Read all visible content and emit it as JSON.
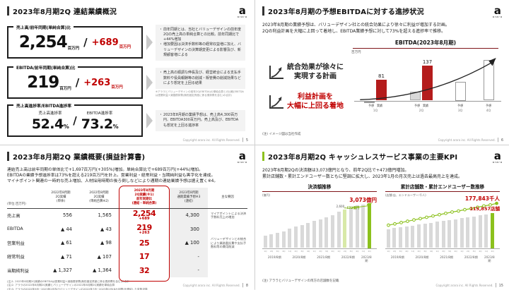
{
  "logo": {
    "mark": "a",
    "name": "arara"
  },
  "footer": {
    "copyright": "Copyright arara inc. All Rights Reserved."
  },
  "slides": {
    "tl": {
      "page": "5",
      "title": "2023年8月期2Q 連結業績概況",
      "kpi_boxes": [
        {
          "label": "売上高/前年同期(単純合算)比",
          "value": "2,254",
          "unit": "百万円",
          "slash": "/",
          "delta": "+689",
          "delta_unit": "百万円"
        },
        {
          "label": "EBITDA/前年同期(単純合算)比",
          "value": "219",
          "unit": "百万円",
          "slash": "/",
          "delta": "+263",
          "delta_unit": "百万円"
        },
        {
          "label": "売上高進捗率/EBITDA進捗率",
          "left_label": "売上高進捗率",
          "left_value": "52.4",
          "left_unit": "%",
          "slash": "/",
          "right_label": "EBITDA進捗率",
          "right_value": "73.2",
          "right_unit": "%"
        }
      ],
      "notes": [
        {
          "bullets": [
            "前年同期とは、当社とバリューデザインの前年度2Qの売上高の単純合算との比較。前年同期比で+44%増加",
            "増加要因は決済手数料等の経常収益増に加え、バリューデザインの決算期変更による影響及び、新規顧客増による"
          ]
        },
        {
          "bullets": [
            "売上高の順調な伸長及び、経営統合による支払手数料や役員報酬等の削減・販管費の削減効果などにより想定を上回る結果"
          ],
          "footnote": "※アララとバリューデザインの前年2Q(EBITDA)の単純合算との比較(EBITDAは営業利益+減価償却費(無形固定資産に係る償却費を含む)の合計)"
        },
        {
          "bullets": [
            "2023年8月期の業績予想は、売上高4,300百万円、EBITDA300百万円。売上高及び、EBITDAも想定を上回る進捗率"
          ]
        }
      ]
    },
    "tr": {
      "page": "6",
      "title": "2023年8月期の予想EBITDAに対する進捗状況",
      "lead": "2023年8月期の業績予想は、バリューデザイン社との統合効果により徐々に利益が増加する計画。\n2Qの利益計画を大幅に上回って着地し、EBITDA業績予想に対して73%を超える進捗率で推移。",
      "point_black": "統合効果が徐々に\n実現する計画",
      "point_red": "利益計画を\n大幅に上回る着地",
      "note": "(注) イメージ図は当社作成"
    },
    "bl": {
      "page": "8",
      "title": "2023年8月期2Q 業績概要(損益計算書)",
      "lead": "連結売上高は前年同期の単体比で+1,697百万円(+305%)増加。単純合算比で+689百万円(+44%)増加。\nEBITDAの業績予想進捗率は73%を超える219百万円を計上。営業利益・経常利益・当期純利益も黒字化を達成。\nマイナポイント関連の一時的な売上増加、人材採用時期の後ろ倒しなどにより通期の連結業績予想は据え置く※4。",
      "table": {
        "unit_label": "(単位:百万円)",
        "columns": [
          "2022年8月期\n2Q実績\n(単体)",
          "2022年8月期\n2Q実績\n(単純合算※2)",
          "2023年8月期\n2Q実績(※1)\n前年同期比\n(連結・単純合算)",
          "2023年8月期\n通期業績予想※3\n(連結)",
          "主な要因"
        ],
        "rows": [
          {
            "label": "売上高",
            "prior_standalone": "556",
            "prior_combined": "1,565",
            "current": "2,254",
            "current_delta": "+689",
            "forecast": "4,300",
            "factor": "マイナポイントによる決済手数料売上の増加"
          },
          {
            "label": "EBITDA",
            "prior_standalone": "▲ 44",
            "prior_combined": "▲ 43",
            "current": "219",
            "current_delta": "+263",
            "forecast": "300",
            "factor": ""
          },
          {
            "label": "営業利益",
            "prior_standalone": "▲ 61",
            "prior_combined": "▲ 98",
            "current": "25",
            "current_delta": "",
            "forecast": "▲ 100",
            "factor": "バリューデザインとの統合により業務委託費や支払手数料等の費用削減"
          },
          {
            "label": "経常利益",
            "prior_standalone": "▲ 71",
            "prior_combined": "▲ 107",
            "current": "17",
            "current_delta": "",
            "forecast": "-",
            "factor": ""
          },
          {
            "label": "当期純利益",
            "prior_standalone": "▲ 1,327",
            "prior_combined": "▲ 1,364",
            "current": "32",
            "current_delta": "",
            "forecast": "-",
            "factor": ""
          }
        ]
      },
      "footnotes": [
        "(注)1. 2023年8月期2Q実績のEBITDAは営業利益+減価償却費(無形固定資産に係る償却費を含む)の合計",
        "(注)2. アララの2022年8月期2Q実績とバリューデザインの2022年8月期2Q実績を単純合算",
        "(注)3. アララの2022年9月~2023年2月及びバリューデザインの2022年7月~2023年2月(8か月間)を連結した変則決算",
        "(注)4. 今後、通期業績予想の変更が生じる場合には、速やかに公表いたします"
      ]
    },
    "br": {
      "page": "15",
      "title": "2023年8月期2Q キャッシュレスサービス事業の主要KPI",
      "lead": "2023年8月期2Qの決済額は3,073億円となり、前年2Q比で+473億円増加。\n累計店舗数・累計エンドユーザー数ともに堅調に拡大し、2023年1月の月次売上は過去最高売上を達成。",
      "note": "(注) アララとバリューデザインの両方の店舗数を記載"
    }
  },
  "colors": {
    "accent_red": "#c00000",
    "bar_red": "#b41c1c",
    "accent_green": "#8cc11d",
    "light_green": "#d8e9a8",
    "bar_gray": "#d9d9d9"
  },
  "chart_data": [
    {
      "id": "ebitda_quarterly",
      "type": "bar",
      "title": "EBITDA(2023年8月期)",
      "ylabel": "百万円",
      "categories": [
        "1Q",
        "2Q",
        "3Q",
        "4Q"
      ],
      "series": [
        {
          "name": "予想",
          "values": [
            -8,
            35,
            75,
            160
          ],
          "styles": [
            "outline",
            "grayfill",
            "outline",
            "outline"
          ]
        },
        {
          "name": "実績",
          "values": [
            81,
            137,
            null,
            null
          ],
          "style": "red"
        }
      ],
      "data_labels": [
        81,
        137
      ],
      "legend_position": "none"
    },
    {
      "id": "payment_volume",
      "type": "bar",
      "title": "決済額推移",
      "ylabel": "(億円)",
      "x": [
        "1Q",
        "2Q",
        "3Q",
        "4Q",
        "1Q",
        "2Q",
        "3Q",
        "4Q",
        "1Q",
        "2Q",
        "3Q",
        "4Q",
        "1Q",
        "2Q",
        "3Q",
        "4Q",
        "1Q",
        "2Q"
      ],
      "group_labels": [
        "2019/8期",
        "2020/8期",
        "2021/8期",
        "2022/8期",
        "2023/8期"
      ],
      "quarters_per_group": [
        4,
        4,
        4,
        4,
        2
      ],
      "values": [
        850,
        950,
        1050,
        1150,
        1300,
        1450,
        1550,
        1700,
        1850,
        1950,
        2100,
        2250,
        2450,
        2600,
        2750,
        2900,
        2950,
        3073
      ],
      "highlight_prior_index": 13,
      "highlight_final_index": 17,
      "prior_label": "2,600",
      "final_label": "3,073億円",
      "delta_label": "+473億円"
    },
    {
      "id": "stores_users",
      "type": "bar+line",
      "title": "累計店舗数・累計エンドユーザー数推移",
      "ylabel": "(店舗:店、エンドユーザー:千人)",
      "x": [
        "1Q",
        "2Q",
        "3Q",
        "4Q",
        "1Q",
        "2Q",
        "3Q",
        "4Q",
        "1Q",
        "2Q",
        "3Q",
        "4Q",
        "1Q",
        "2Q",
        "3Q",
        "4Q",
        "1Q",
        "2Q"
      ],
      "group_labels": [
        "2019/8期",
        "2020/8期",
        "2021/8期",
        "2022/8期",
        "2023/8期"
      ],
      "quarters_per_group": [
        4,
        4,
        4,
        4,
        2
      ],
      "bar_series": {
        "name": "累計店舗数",
        "values": [
          62000,
          65000,
          68000,
          71000,
          74000,
          77000,
          80000,
          83000,
          86000,
          89000,
          92000,
          95000,
          98000,
          101000,
          104000,
          107000,
          110000,
          115857
        ]
      },
      "line_series": {
        "name": "累計エンドユーザー数",
        "values": [
          95000,
          100000,
          105000,
          110000,
          115000,
          120000,
          125000,
          130000,
          135000,
          140000,
          145000,
          149000,
          154000,
          158000,
          163000,
          168000,
          172000,
          177843
        ]
      },
      "bar_final_label": "115,857店舗",
      "line_final_label": "177,843千人"
    }
  ]
}
